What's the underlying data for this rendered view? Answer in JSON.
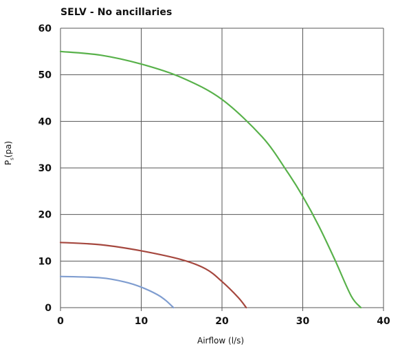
{
  "chart_data": {
    "type": "line",
    "title": "SELV - No ancillaries",
    "xlabel": "Airflow (l/s)",
    "ylabel_main": "P",
    "ylabel_sub": "s",
    "ylabel_unit": "(pa)",
    "xlim": [
      0,
      40
    ],
    "ylim": [
      0,
      60
    ],
    "xticks": [
      0,
      10,
      20,
      30,
      40
    ],
    "yticks": [
      0,
      10,
      20,
      30,
      40,
      50,
      60
    ],
    "grid": true,
    "legend": "none",
    "series": [
      {
        "color": "#58b14a",
        "x": [
          0,
          5,
          10,
          15,
          20,
          25,
          28,
          30,
          32,
          34,
          36,
          37.2
        ],
        "y": [
          55,
          54.2,
          52.3,
          49.4,
          44.7,
          36.6,
          29.4,
          23.9,
          17.5,
          10.2,
          2.5,
          0
        ]
      },
      {
        "color": "#a5473e",
        "x": [
          0,
          5,
          10,
          15,
          18,
          20,
          22,
          23
        ],
        "y": [
          14,
          13.5,
          12.2,
          10.3,
          8.3,
          5.6,
          2.2,
          0
        ]
      },
      {
        "color": "#7f9dd0",
        "x": [
          0,
          5,
          8,
          10,
          12,
          13,
          14
        ],
        "y": [
          6.7,
          6.4,
          5.5,
          4.4,
          2.8,
          1.6,
          0
        ]
      }
    ]
  }
}
